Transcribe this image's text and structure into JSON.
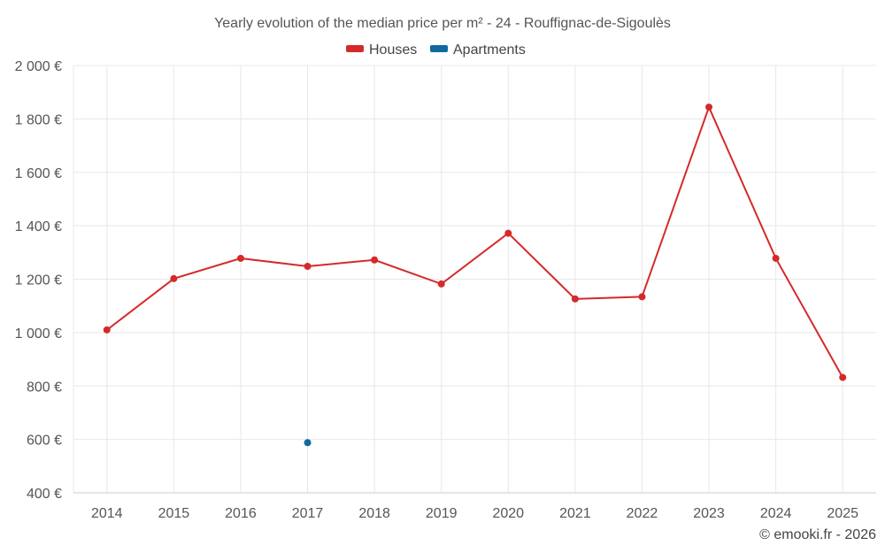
{
  "chart_data": {
    "type": "line",
    "title": "Yearly evolution of the median price per m² - 24 - Rouffignac-de-Sigoulès",
    "categories": [
      "2014",
      "2015",
      "2016",
      "2017",
      "2018",
      "2019",
      "2020",
      "2021",
      "2022",
      "2023",
      "2024",
      "2025"
    ],
    "ylim": [
      400,
      2000
    ],
    "yticks": [
      400,
      600,
      800,
      1000,
      1200,
      1400,
      1600,
      1800,
      2000
    ],
    "ytick_labels": [
      "400 €",
      "600 €",
      "800 €",
      "1 000 €",
      "1 200 €",
      "1 400 €",
      "1 600 €",
      "1 800 €",
      "2 000 €"
    ],
    "grid": true,
    "legend_position": "top-center",
    "series": [
      {
        "name": "Houses",
        "color": "#d42a2a",
        "values": [
          1010,
          1202,
          1278,
          1248,
          1272,
          1182,
          1372,
          1126,
          1134,
          1844,
          1278,
          832
        ]
      },
      {
        "name": "Apartments",
        "color": "#0f6a9e",
        "values": [
          null,
          null,
          null,
          588,
          null,
          null,
          null,
          null,
          null,
          null,
          null,
          null
        ]
      }
    ],
    "credit": "© emooki.fr - 2026"
  }
}
